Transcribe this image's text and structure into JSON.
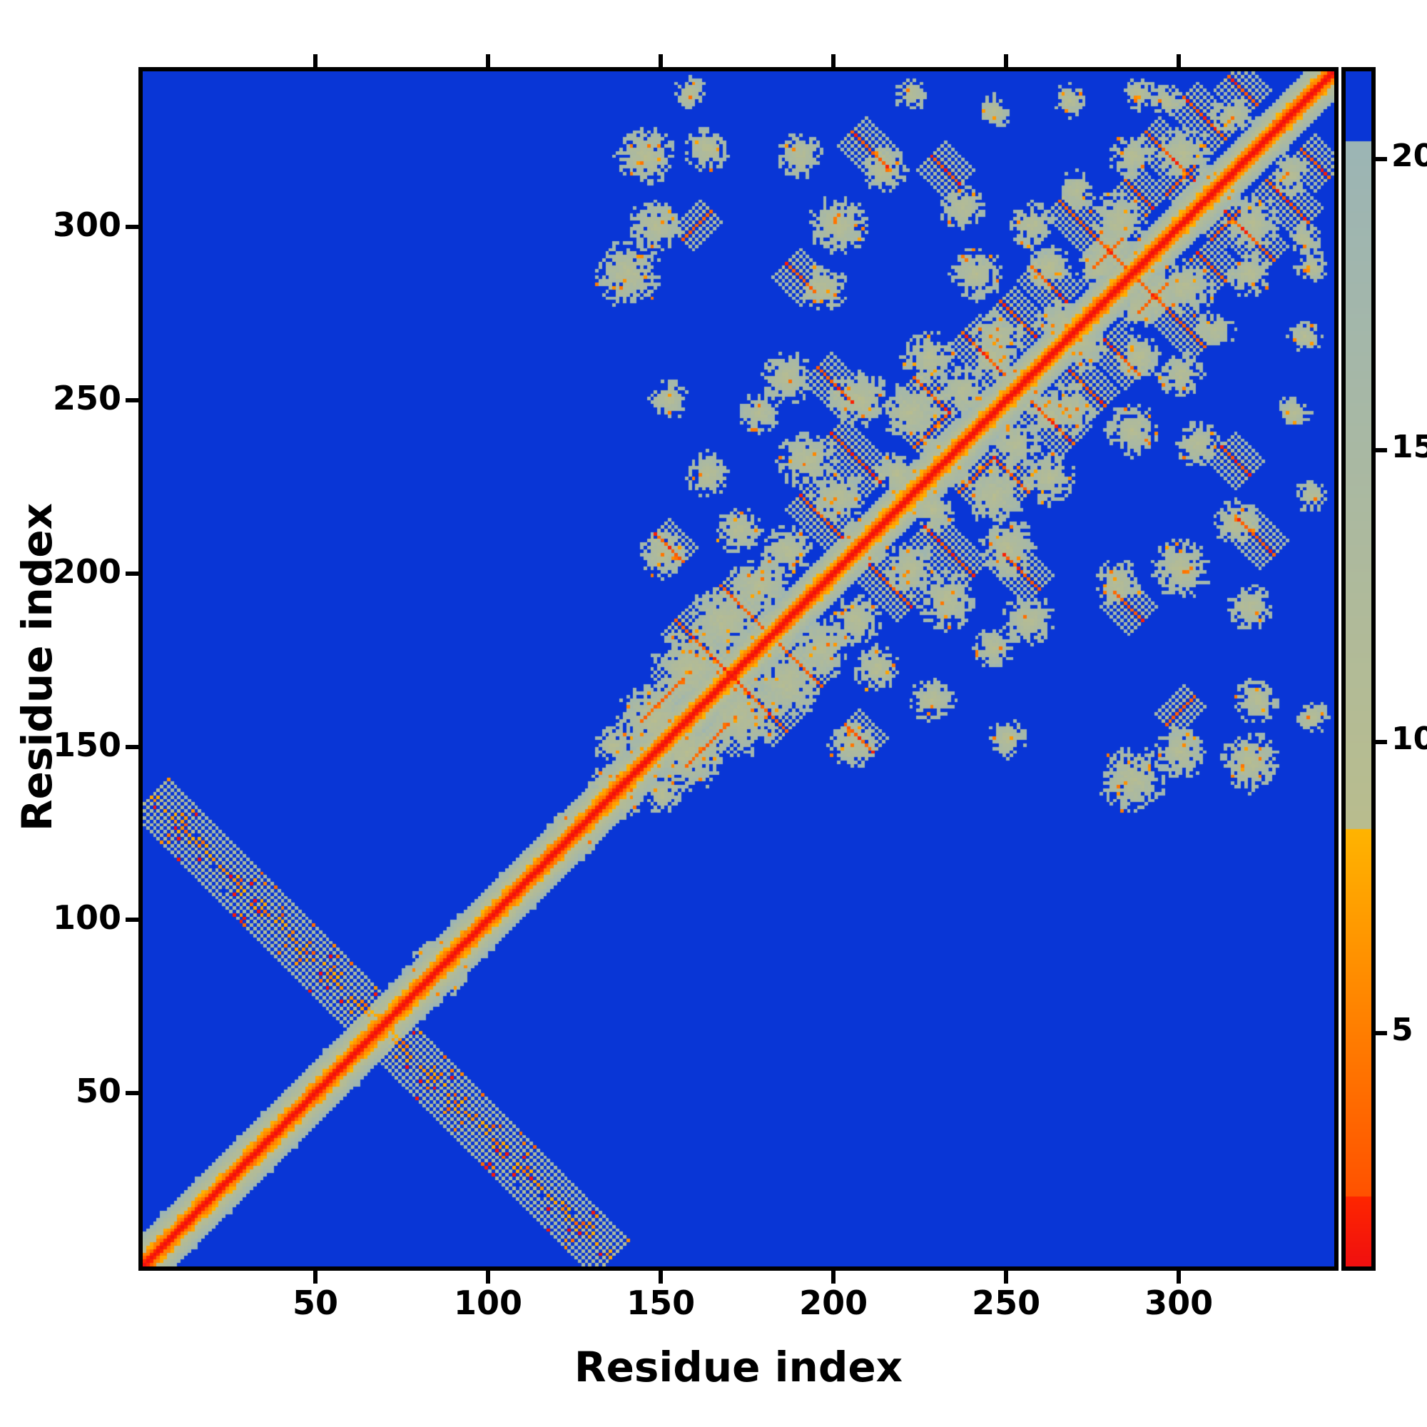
{
  "figure": {
    "background": "#ffffff",
    "frame_color": "#000000"
  },
  "chart_data": {
    "type": "heatmap",
    "title": "",
    "xlabel": "Residue index",
    "ylabel": "Residue index",
    "x_ticks": [
      50,
      100,
      150,
      200,
      250,
      300
    ],
    "y_ticks": [
      50,
      100,
      150,
      200,
      250,
      300
    ],
    "n_residues": 345,
    "axis_range": [
      1,
      345
    ],
    "grid": false,
    "legend": "colorbar-right",
    "description": "Symmetric residue-residue distance map (contact map). Red diagonal = self/near contacts, orange flanks, sage-gray mid-range distances, blue background = far. Lower-left shows an antiparallel hairpin crossing the diagonal near residue 68; upper-right (residues ~135-345) shows a folded-domain contact cluster network.",
    "colorbar": {
      "orientation": "vertical",
      "ticks": [
        5,
        10,
        15,
        20
      ],
      "vmin": 1,
      "vmax": 21.5
    },
    "colormap": {
      "background_color": "#0936d6",
      "segments": [
        {
          "max": 2.2,
          "from": "#f01010",
          "to": "#ff2600"
        },
        {
          "max": 8.5,
          "from": "#ff5200",
          "to": "#ffb400"
        },
        {
          "max": 20.3,
          "from": "#b9bd8e",
          "to": "#9cb5b5"
        },
        {
          "max": 99,
          "from": "#0936d6",
          "to": "#0936d6"
        }
      ]
    },
    "features": {
      "diagonal": {
        "from": 1,
        "to": 345,
        "halo_halfwidth": 9,
        "wide_until": 140
      },
      "antidiagonal": {
        "x_from": 2,
        "y_from": 135,
        "x_to": 135,
        "y_to": 2,
        "halfwidth": 5
      },
      "antiparallel_segments": [
        {
          "x": 163,
          "y": 177,
          "len": 9
        },
        {
          "x": 173,
          "y": 190,
          "len": 6
        },
        {
          "x": 152,
          "y": 207,
          "len": 4
        },
        {
          "x": 196,
          "y": 216,
          "len": 6
        },
        {
          "x": 206,
          "y": 233,
          "len": 7
        },
        {
          "x": 228,
          "y": 251,
          "len": 5
        },
        {
          "x": 243,
          "y": 263,
          "len": 6
        },
        {
          "x": 253,
          "y": 273,
          "len": 5
        },
        {
          "x": 262,
          "y": 283,
          "len": 5
        },
        {
          "x": 275,
          "y": 297,
          "len": 10
        },
        {
          "x": 297,
          "y": 320,
          "len": 7
        },
        {
          "x": 307,
          "y": 331,
          "len": 6
        },
        {
          "x": 318,
          "y": 339,
          "len": 4
        },
        {
          "x": 200,
          "y": 254,
          "len": 5
        },
        {
          "x": 210,
          "y": 322,
          "len": 5
        },
        {
          "x": 190,
          "y": 285,
          "len": 4
        },
        {
          "x": 232,
          "y": 316,
          "len": 4
        },
        {
          "x": 288,
          "y": 309,
          "len": 4
        }
      ],
      "parallel_segments": [
        {
          "x": 150,
          "y": 163,
          "len": 6
        },
        {
          "x": 228,
          "y": 241,
          "len": 5
        },
        {
          "x": 279,
          "y": 292,
          "len": 4
        },
        {
          "x": 300,
          "y": 313,
          "len": 4
        },
        {
          "x": 160,
          "y": 300,
          "len": 4
        }
      ],
      "clusters": [
        {
          "x": 86,
          "y": 86,
          "r": 9
        },
        {
          "x": 123,
          "y": 127,
          "r": 6
        },
        {
          "x": 134,
          "y": 138,
          "r": 7
        },
        {
          "x": 136,
          "y": 150,
          "r": 6
        },
        {
          "x": 148,
          "y": 157,
          "r": 12
        },
        {
          "x": 158,
          "y": 172,
          "r": 12
        },
        {
          "x": 168,
          "y": 186,
          "r": 11
        },
        {
          "x": 171,
          "y": 171,
          "r": 7
        },
        {
          "x": 178,
          "y": 196,
          "r": 9
        },
        {
          "x": 186,
          "y": 206,
          "r": 8
        },
        {
          "x": 209,
          "y": 209,
          "r": 7
        },
        {
          "x": 150,
          "y": 205,
          "r": 7
        },
        {
          "x": 172,
          "y": 212,
          "r": 7
        },
        {
          "x": 163,
          "y": 228,
          "r": 7
        },
        {
          "x": 178,
          "y": 246,
          "r": 6
        },
        {
          "x": 152,
          "y": 250,
          "r": 6
        },
        {
          "x": 140,
          "y": 286,
          "r": 10
        },
        {
          "x": 148,
          "y": 300,
          "r": 8
        },
        {
          "x": 145,
          "y": 320,
          "r": 9
        },
        {
          "x": 163,
          "y": 322,
          "r": 7
        },
        {
          "x": 158,
          "y": 338,
          "r": 5
        },
        {
          "x": 186,
          "y": 256,
          "r": 8
        },
        {
          "x": 192,
          "y": 232,
          "r": 9
        },
        {
          "x": 201,
          "y": 222,
          "r": 8
        },
        {
          "x": 207,
          "y": 250,
          "r": 9
        },
        {
          "x": 197,
          "y": 282,
          "r": 7
        },
        {
          "x": 201,
          "y": 300,
          "r": 9
        },
        {
          "x": 190,
          "y": 320,
          "r": 7
        },
        {
          "x": 214,
          "y": 316,
          "r": 7
        },
        {
          "x": 218,
          "y": 228,
          "r": 7
        },
        {
          "x": 222,
          "y": 246,
          "r": 9
        },
        {
          "x": 222,
          "y": 338,
          "r": 5
        },
        {
          "x": 231,
          "y": 232,
          "r": 9
        },
        {
          "x": 227,
          "y": 262,
          "r": 8
        },
        {
          "x": 237,
          "y": 252,
          "r": 8
        },
        {
          "x": 241,
          "y": 286,
          "r": 8
        },
        {
          "x": 237,
          "y": 305,
          "r": 7
        },
        {
          "x": 246,
          "y": 262,
          "r": 7
        },
        {
          "x": 247,
          "y": 268,
          "r": 8
        },
        {
          "x": 246,
          "y": 333,
          "r": 5
        },
        {
          "x": 252,
          "y": 252,
          "r": 8
        },
        {
          "x": 257,
          "y": 300,
          "r": 7
        },
        {
          "x": 262,
          "y": 288,
          "r": 7
        },
        {
          "x": 266,
          "y": 271,
          "r": 8
        },
        {
          "x": 268,
          "y": 336,
          "r": 5
        },
        {
          "x": 270,
          "y": 310,
          "r": 6
        },
        {
          "x": 276,
          "y": 288,
          "r": 7
        },
        {
          "x": 282,
          "y": 301,
          "r": 9
        },
        {
          "x": 286,
          "y": 320,
          "r": 7
        },
        {
          "x": 288,
          "y": 338,
          "r": 5
        },
        {
          "x": 292,
          "y": 292,
          "r": 7
        },
        {
          "x": 296,
          "y": 336,
          "r": 5
        },
        {
          "x": 301,
          "y": 321,
          "r": 8
        },
        {
          "x": 312,
          "y": 312,
          "r": 6
        },
        {
          "x": 315,
          "y": 332,
          "r": 6
        },
        {
          "x": 326,
          "y": 327,
          "r": 6
        },
        {
          "x": 337,
          "y": 338,
          "r": 5
        }
      ]
    }
  }
}
